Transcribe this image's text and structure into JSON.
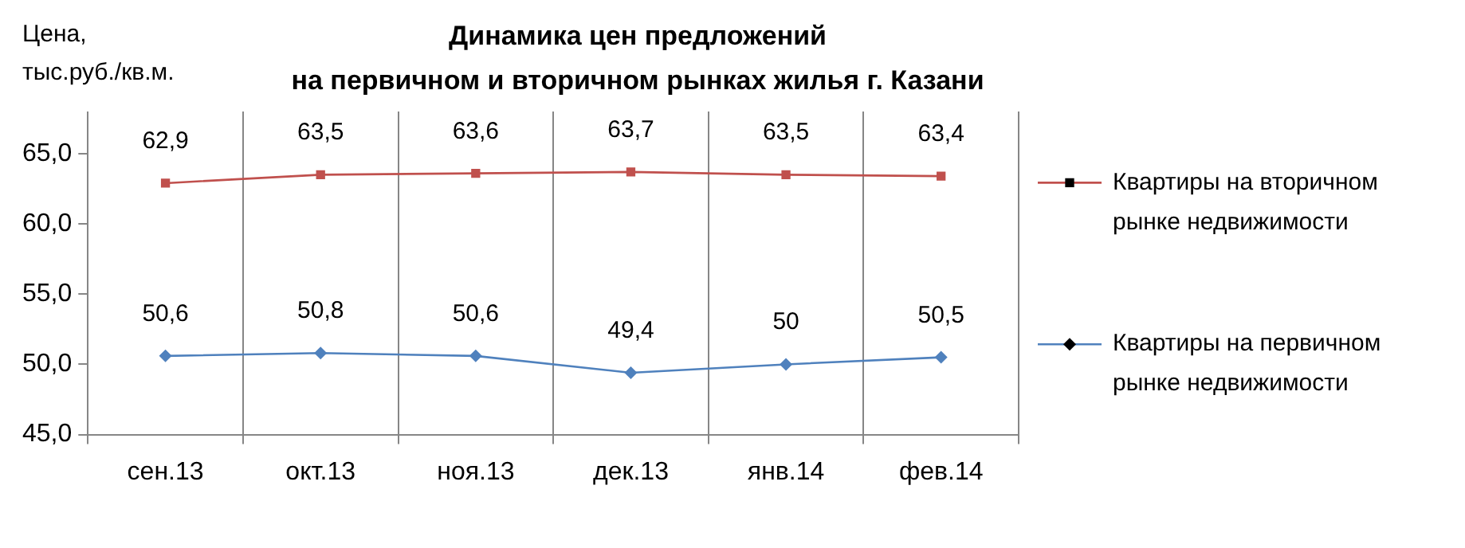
{
  "chart_data": {
    "type": "line",
    "title": "Динамика цен предложений\nна первичном и вторичном рынках жилья г. Казани",
    "ylabel": "Цена,\nтыс.руб./кв.м.",
    "categories": [
      "сен.13",
      "окт.13",
      "ноя.13",
      "дек.13",
      "янв.14",
      "фев.14"
    ],
    "series": [
      {
        "name": "Квартиры на вторичном рынке недвижимости",
        "color": "#c0504d",
        "marker": "square",
        "values": [
          62.9,
          63.5,
          63.6,
          63.7,
          63.5,
          63.4
        ],
        "value_labels": [
          "62,9",
          "63,5",
          "63,6",
          "63,7",
          "63,5",
          "63,4"
        ]
      },
      {
        "name": "Квартиры на первичном рынке недвижимости",
        "color": "#4f81bd",
        "marker": "diamond",
        "values": [
          50.6,
          50.8,
          50.6,
          49.4,
          50,
          50.5
        ],
        "value_labels": [
          "50,6",
          "50,8",
          "50,6",
          "49,4",
          "50",
          "50,5"
        ]
      }
    ],
    "ylim": [
      45,
      68
    ],
    "yticks": [
      {
        "value": 45,
        "label": "45,0"
      },
      {
        "value": 50,
        "label": "50,0"
      },
      {
        "value": 55,
        "label": "55,0"
      },
      {
        "value": 60,
        "label": "60,0"
      },
      {
        "value": 65,
        "label": "65,0"
      }
    ],
    "grid": "x",
    "legend": "right",
    "line_style": "solid"
  }
}
